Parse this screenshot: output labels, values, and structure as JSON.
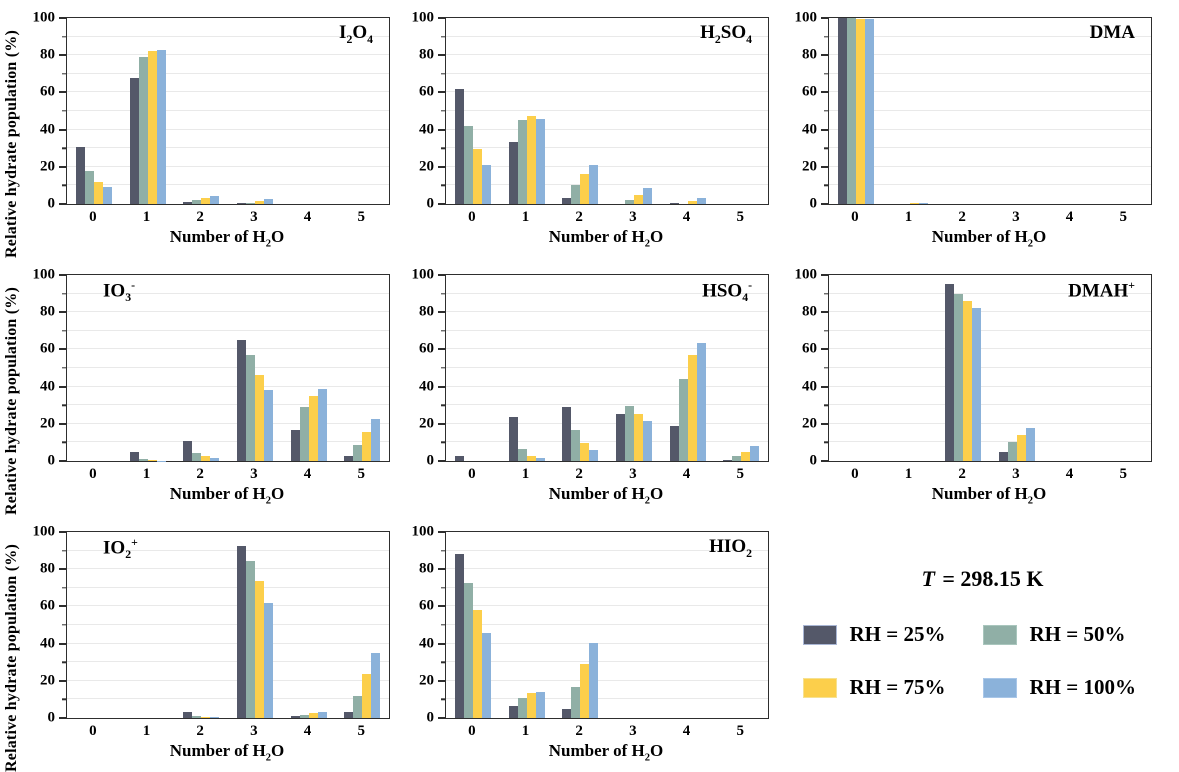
{
  "figure": {
    "background": "#ffffff",
    "temperature_note": {
      "variable": "T",
      "rest": " = 298.15 K"
    }
  },
  "axes": {
    "ylabel": "Relative hydrate population (%)",
    "xlabel": "Number of H~2~O",
    "ylim": [
      0,
      100
    ],
    "y_major_ticks": [
      0,
      20,
      40,
      60,
      80,
      100
    ],
    "y_minor_ticks": [
      10,
      30,
      50,
      70,
      90
    ],
    "grid": "horizontal, every 10, light gray",
    "categories": [
      "0",
      "1",
      "2",
      "3",
      "4",
      "5"
    ]
  },
  "series_style": {
    "names": [
      "RH = 25%",
      "RH = 50%",
      "RH = 75%",
      "RH = 100%"
    ],
    "colors": [
      "#545869",
      "#90afa6",
      "#fccf4b",
      "#8bb2da"
    ],
    "edge_colors": [
      "#a9b6d4",
      "#a9c6bd",
      "#f6e191",
      "#a8c6e8"
    ]
  },
  "legend": {
    "position": "bottom-right panel",
    "items": [
      {
        "label": "RH = 25%",
        "color": "#545869",
        "edge": "#a9b6d4"
      },
      {
        "label": "RH = 50%",
        "color": "#90afa6",
        "edge": "#a9c6bd"
      },
      {
        "label": "RH = 75%",
        "color": "#fccf4b",
        "edge": "#f6e191"
      },
      {
        "label": "RH = 100%",
        "color": "#8bb2da",
        "edge": "#a8c6e8"
      }
    ]
  },
  "chart_data": [
    {
      "id": "i2o4",
      "type": "bar",
      "title": "I~2~O~4~",
      "title_pos": "right",
      "categories": [
        "0",
        "1",
        "2",
        "3",
        "4",
        "5"
      ],
      "ylim": [
        0,
        100
      ],
      "series": [
        {
          "name": "RH = 25%",
          "values": [
            30.5,
            68,
            1,
            0.5,
            0,
            0
          ]
        },
        {
          "name": "RH = 50%",
          "values": [
            18,
            79,
            2,
            0.5,
            0,
            0
          ]
        },
        {
          "name": "RH = 75%",
          "values": [
            12,
            82.5,
            3.5,
            1.5,
            0,
            0
          ]
        },
        {
          "name": "RH = 100%",
          "values": [
            9,
            83,
            4.5,
            2.5,
            0,
            0
          ]
        }
      ]
    },
    {
      "id": "h2so4",
      "type": "bar",
      "title": "H~2~SO~4~",
      "title_pos": "right",
      "categories": [
        "0",
        "1",
        "2",
        "3",
        "4",
        "5"
      ],
      "ylim": [
        0,
        100
      ],
      "series": [
        {
          "name": "RH = 25%",
          "values": [
            62,
            33.5,
            3.5,
            0,
            0.5,
            0
          ]
        },
        {
          "name": "RH = 50%",
          "values": [
            42,
            45,
            10,
            2,
            0,
            0
          ]
        },
        {
          "name": "RH = 75%",
          "values": [
            29.5,
            47.5,
            16,
            5,
            1.5,
            0
          ]
        },
        {
          "name": "RH = 100%",
          "values": [
            21,
            45.5,
            21,
            8.5,
            3.5,
            0
          ]
        }
      ]
    },
    {
      "id": "dma",
      "type": "bar",
      "title": "DMA",
      "title_pos": "right",
      "categories": [
        "0",
        "1",
        "2",
        "3",
        "4",
        "5"
      ],
      "ylim": [
        0,
        100
      ],
      "series": [
        {
          "name": "RH = 25%",
          "values": [
            100,
            0,
            0,
            0,
            0,
            0
          ]
        },
        {
          "name": "RH = 50%",
          "values": [
            100,
            0,
            0,
            0,
            0,
            0
          ]
        },
        {
          "name": "RH = 75%",
          "values": [
            99.7,
            0.3,
            0,
            0,
            0,
            0
          ]
        },
        {
          "name": "RH = 100%",
          "values": [
            99.5,
            0.5,
            0,
            0,
            0,
            0
          ]
        }
      ]
    },
    {
      "id": "io3-anion",
      "type": "bar",
      "title": "IO~3~^-^",
      "title_pos": "left",
      "categories": [
        "0",
        "1",
        "2",
        "3",
        "4",
        "5"
      ],
      "ylim": [
        0,
        100
      ],
      "series": [
        {
          "name": "RH = 25%",
          "values": [
            0,
            5,
            10.5,
            65,
            16.5,
            2.5
          ]
        },
        {
          "name": "RH = 50%",
          "values": [
            0,
            1,
            4.5,
            57,
            29,
            8.5
          ]
        },
        {
          "name": "RH = 75%",
          "values": [
            0,
            0.3,
            2.5,
            46.5,
            35,
            15.5
          ]
        },
        {
          "name": "RH = 100%",
          "values": [
            0,
            0.2,
            1.5,
            38,
            38.5,
            22.5
          ]
        }
      ]
    },
    {
      "id": "hso4-anion",
      "type": "bar",
      "title": "HSO~4~^-^",
      "title_pos": "right",
      "categories": [
        "0",
        "1",
        "2",
        "3",
        "4",
        "5"
      ],
      "ylim": [
        0,
        100
      ],
      "series": [
        {
          "name": "RH = 25%",
          "values": [
            2.5,
            23.5,
            29,
            25.5,
            19,
            0.5
          ]
        },
        {
          "name": "RH = 50%",
          "values": [
            0,
            6.5,
            16.5,
            29.5,
            44,
            2.5
          ]
        },
        {
          "name": "RH = 75%",
          "values": [
            0,
            2.5,
            9.5,
            25.5,
            57,
            5
          ]
        },
        {
          "name": "RH = 100%",
          "values": [
            0,
            1.5,
            6,
            21.5,
            63.5,
            8
          ]
        }
      ]
    },
    {
      "id": "dmah-cation",
      "type": "bar",
      "title": "DMAH^+^",
      "title_pos": "right",
      "categories": [
        "0",
        "1",
        "2",
        "3",
        "4",
        "5"
      ],
      "ylim": [
        0,
        100
      ],
      "series": [
        {
          "name": "RH = 25%",
          "values": [
            0,
            0,
            95,
            5,
            0,
            0
          ]
        },
        {
          "name": "RH = 50%",
          "values": [
            0,
            0,
            90,
            10,
            0,
            0
          ]
        },
        {
          "name": "RH = 75%",
          "values": [
            0,
            0,
            86,
            14,
            0,
            0
          ]
        },
        {
          "name": "RH = 100%",
          "values": [
            0,
            0,
            82,
            18,
            0,
            0
          ]
        }
      ]
    },
    {
      "id": "io2-cation",
      "type": "bar",
      "title": "IO~2~^+^",
      "title_pos": "left",
      "categories": [
        "0",
        "1",
        "2",
        "3",
        "4",
        "5"
      ],
      "ylim": [
        0,
        100
      ],
      "series": [
        {
          "name": "RH = 25%",
          "values": [
            0,
            0,
            3,
            92.5,
            1,
            3.5
          ]
        },
        {
          "name": "RH = 50%",
          "values": [
            0,
            0,
            1,
            84.5,
            1.5,
            12
          ]
        },
        {
          "name": "RH = 75%",
          "values": [
            0,
            0,
            0.5,
            73.5,
            2.5,
            23.5
          ]
        },
        {
          "name": "RH = 100%",
          "values": [
            0,
            0,
            0.3,
            62,
            3,
            35
          ]
        }
      ]
    },
    {
      "id": "hio2",
      "type": "bar",
      "title": "HIO~2~",
      "title_pos": "right",
      "categories": [
        "0",
        "1",
        "2",
        "3",
        "4",
        "5"
      ],
      "ylim": [
        0,
        100
      ],
      "series": [
        {
          "name": "RH = 25%",
          "values": [
            88,
            6.5,
            5,
            0,
            0,
            0
          ]
        },
        {
          "name": "RH = 50%",
          "values": [
            72.5,
            11,
            16.5,
            0,
            0,
            0
          ]
        },
        {
          "name": "RH = 75%",
          "values": [
            58,
            13.5,
            29,
            0,
            0,
            0
          ]
        },
        {
          "name": "RH = 100%",
          "values": [
            45.5,
            14,
            40.5,
            0,
            0,
            0
          ]
        }
      ]
    }
  ]
}
